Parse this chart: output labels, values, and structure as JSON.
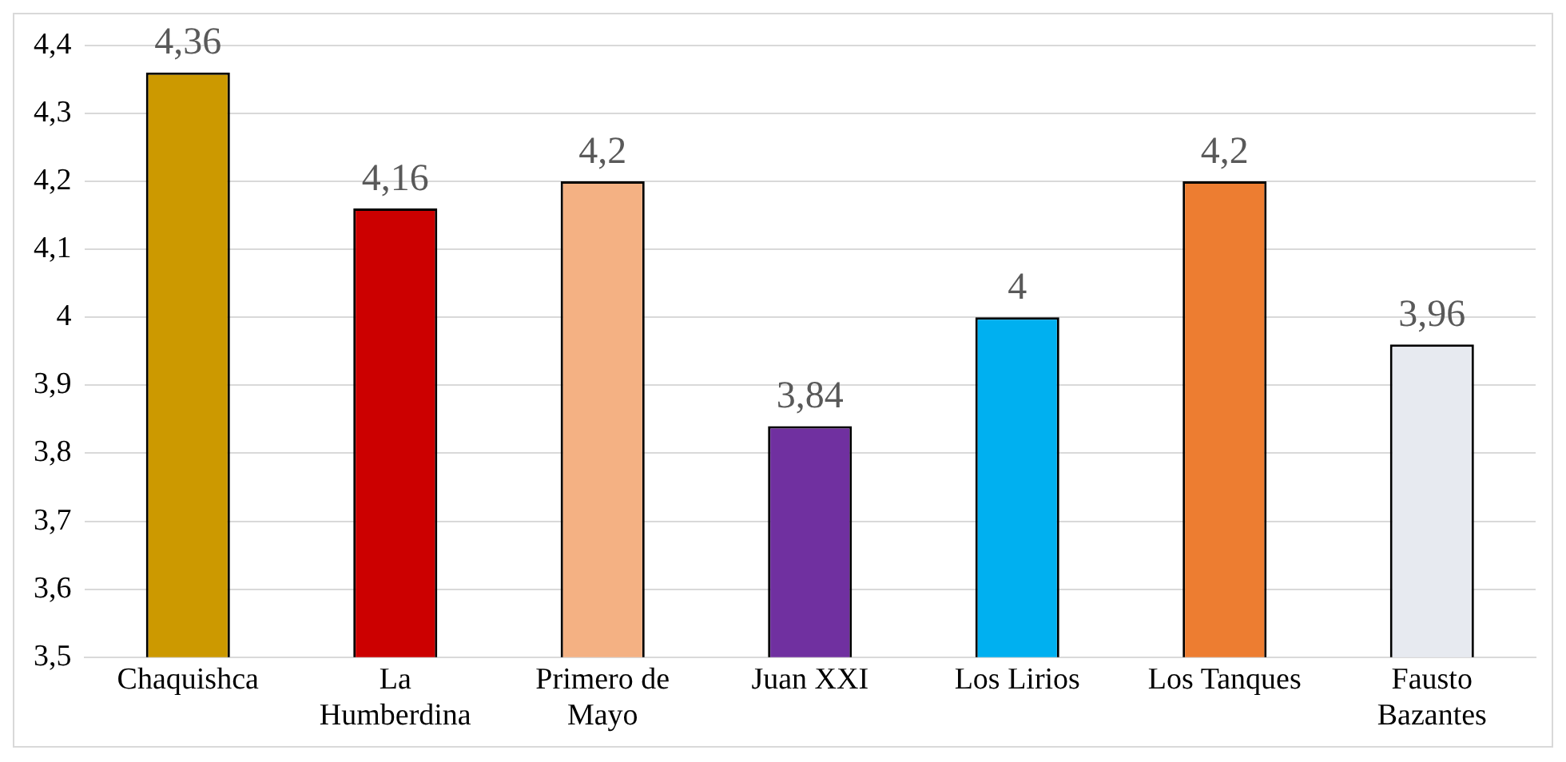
{
  "chart_data": {
    "type": "bar",
    "categories": [
      "Chaquishca",
      "La Humberdina",
      "Primero de Mayo",
      "Juan XXI",
      "Los Lirios",
      "Los Tanques",
      "Fausto Bazantes"
    ],
    "values": [
      4.36,
      4.16,
      4.2,
      3.84,
      4,
      4.2,
      3.96
    ],
    "colors": [
      "#cc9900",
      "#cc0000",
      "#f4b183",
      "#7030a0",
      "#00b0f0",
      "#ed7d31",
      "#e7eaf0"
    ],
    "value_labels": [
      "4,36",
      "4,16",
      "4,2",
      "3,84",
      "4",
      "4,2",
      "3,96"
    ],
    "ylim": [
      3.5,
      4.4
    ],
    "yticks": [
      {
        "value": 3.5,
        "label": "3,5"
      },
      {
        "value": 3.6,
        "label": "3,6"
      },
      {
        "value": 3.7,
        "label": "3,7"
      },
      {
        "value": 3.8,
        "label": "3,8"
      },
      {
        "value": 3.9,
        "label": "3,9"
      },
      4,
      {
        "value": 4.1,
        "label": "4,1"
      },
      {
        "value": 4.2,
        "label": "4,2"
      },
      {
        "value": 4.3,
        "label": "4,3"
      },
      {
        "value": 4.4,
        "label": "4,4"
      }
    ],
    "grid": "y",
    "legend": false
  }
}
